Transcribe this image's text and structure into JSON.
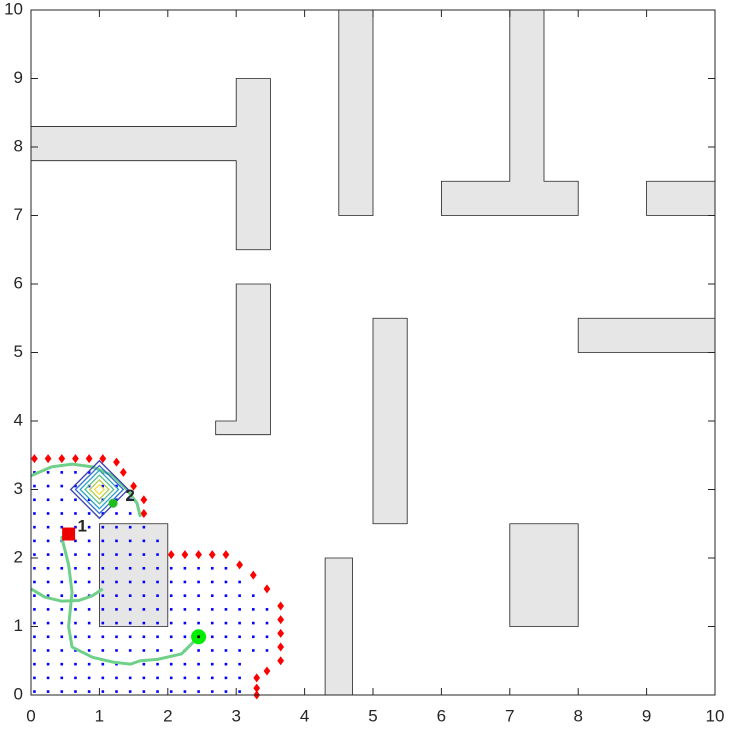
{
  "chart_data": {
    "type": "map",
    "xlim": [
      0,
      10
    ],
    "ylim": [
      0,
      10
    ],
    "xticks": [
      0,
      1,
      2,
      3,
      4,
      5,
      6,
      7,
      8,
      9,
      10
    ],
    "yticks": [
      0,
      1,
      2,
      3,
      4,
      5,
      6,
      7,
      8,
      9,
      10
    ],
    "obstacle_color": "#e6e6e6",
    "obstacles": [
      {
        "x": [
          0,
          3,
          3,
          3.5,
          3.5,
          3,
          3,
          0
        ],
        "y": [
          7.8,
          7.8,
          6.5,
          6.5,
          9,
          9,
          8.3,
          8.3
        ]
      },
      {
        "x": [
          4.5,
          5,
          5,
          4.5
        ],
        "y": [
          7,
          7,
          10,
          10
        ]
      },
      {
        "x": [
          6,
          8,
          8,
          7.5,
          7.5,
          7,
          7,
          6
        ],
        "y": [
          7,
          7,
          7.5,
          7.5,
          10,
          10,
          7.5,
          7.5
        ]
      },
      {
        "x": [
          9,
          10,
          10,
          9
        ],
        "y": [
          7,
          7,
          7.5,
          7.5
        ]
      },
      {
        "x": [
          2.7,
          3.5,
          3.5,
          3,
          3,
          2.7
        ],
        "y": [
          3.8,
          3.8,
          6,
          6,
          4,
          4
        ]
      },
      {
        "x": [
          5,
          5.5,
          5.5,
          5
        ],
        "y": [
          2.5,
          2.5,
          5.5,
          5.5
        ]
      },
      {
        "x": [
          8,
          10,
          10,
          8
        ],
        "y": [
          5,
          5,
          5.5,
          5.5
        ]
      },
      {
        "x": [
          7,
          8,
          8,
          7
        ],
        "y": [
          1,
          1,
          2.5,
          2.5
        ]
      },
      {
        "x": [
          1,
          2,
          2,
          1
        ],
        "y": [
          1,
          1,
          2.5,
          2.5
        ]
      },
      {
        "x": [
          4.3,
          4.7,
          4.7,
          4.3
        ],
        "y": [
          0,
          0,
          2,
          2
        ]
      }
    ],
    "explored_color": "#0000ff",
    "explored": [
      {
        "y": 0.05,
        "x": [
          0.05,
          0.25,
          0.45,
          0.65,
          0.85,
          1.05,
          1.25,
          1.45,
          1.65,
          1.85,
          2.05,
          2.25,
          2.45,
          2.65,
          2.85,
          3.05
        ]
      },
      {
        "y": 0.25,
        "x": [
          0.05,
          0.25,
          0.45,
          0.65,
          0.85,
          1.05,
          1.25,
          1.45,
          1.65,
          1.85,
          2.05,
          2.25,
          2.45,
          2.65,
          2.85,
          3.05
        ]
      },
      {
        "y": 0.45,
        "x": [
          0.05,
          0.25,
          0.45,
          0.65,
          0.85,
          1.05,
          1.25,
          1.45,
          1.65,
          1.85,
          2.05,
          2.25,
          2.45,
          2.65,
          2.85,
          3.05
        ]
      },
      {
        "y": 0.65,
        "x": [
          0.05,
          0.25,
          0.45,
          0.65,
          0.85,
          1.05,
          1.25,
          1.45,
          1.65,
          1.85,
          2.05,
          2.25,
          2.45,
          2.65,
          2.85,
          3.05,
          3.25,
          3.45
        ]
      },
      {
        "y": 0.85,
        "x": [
          0.05,
          0.25,
          0.45,
          0.65,
          0.85,
          1.05,
          1.25,
          1.45,
          1.65,
          1.85,
          2.05,
          2.25,
          2.45,
          2.65,
          2.85,
          3.05,
          3.25,
          3.45
        ]
      },
      {
        "y": 1.05,
        "x": [
          0.05,
          0.25,
          0.45,
          0.65,
          0.85,
          1.05,
          1.25,
          1.45,
          1.65,
          1.85,
          2.05,
          2.25,
          2.45,
          2.65,
          2.85,
          3.05,
          3.25,
          3.45
        ]
      },
      {
        "y": 1.25,
        "x": [
          0.05,
          0.25,
          0.45,
          0.65,
          0.85,
          1.05,
          1.25,
          1.45,
          1.65,
          1.85,
          2.05,
          2.25,
          2.45,
          2.65,
          2.85,
          3.05,
          3.25,
          3.45
        ]
      },
      {
        "y": 1.45,
        "x": [
          0.05,
          0.25,
          0.45,
          0.65,
          0.85,
          1.05,
          1.25,
          1.45,
          1.65,
          1.85,
          2.05,
          2.25,
          2.45,
          2.65,
          2.85,
          3.05,
          3.25
        ]
      },
      {
        "y": 1.65,
        "x": [
          0.05,
          0.25,
          0.45,
          0.65,
          0.85,
          1.05,
          1.25,
          1.45,
          1.65,
          1.85,
          2.05,
          2.25,
          2.45,
          2.65,
          2.85,
          3.05
        ]
      },
      {
        "y": 1.85,
        "x": [
          0.05,
          0.25,
          0.45,
          0.65,
          0.85,
          1.05,
          1.25,
          1.45,
          1.65,
          1.85,
          2.05,
          2.25,
          2.45,
          2.65,
          2.85
        ]
      },
      {
        "y": 2.05,
        "x": [
          0.05,
          0.25,
          0.45,
          0.65,
          0.85,
          1.05,
          1.25,
          1.45,
          1.65,
          1.85
        ]
      },
      {
        "y": 2.25,
        "x": [
          0.05,
          0.25,
          0.45,
          0.65,
          0.85,
          1.05,
          1.25,
          1.45,
          1.65,
          1.85
        ]
      },
      {
        "y": 2.45,
        "x": [
          0.05,
          0.25,
          0.45,
          0.65,
          0.85,
          1.05,
          1.25,
          1.45,
          1.65
        ]
      },
      {
        "y": 2.65,
        "x": [
          0.05,
          0.25,
          0.45,
          0.65,
          0.85,
          1.05,
          1.25,
          1.45
        ]
      },
      {
        "y": 2.85,
        "x": [
          0.05,
          0.25,
          0.45,
          0.65,
          0.85,
          1.05,
          1.25,
          1.45
        ]
      },
      {
        "y": 3.05,
        "x": [
          0.05,
          0.25,
          0.45,
          0.65,
          0.85,
          1.05,
          1.25
        ]
      },
      {
        "y": 3.25,
        "x": [
          0.05,
          0.25,
          0.45,
          0.65,
          0.85,
          1.05
        ]
      }
    ],
    "frontier_color": "#ff0000",
    "frontier": {
      "x": [
        0.05,
        0.25,
        0.45,
        0.65,
        0.85,
        1.05,
        1.25,
        1.35,
        1.5,
        1.65,
        1.65,
        2.05,
        2.25,
        2.45,
        2.65,
        2.85,
        3.05,
        3.25,
        3.45,
        3.65,
        3.65,
        3.65,
        3.65,
        3.65,
        3.45,
        3.3,
        3.3,
        3.3
      ],
      "y": [
        3.45,
        3.45,
        3.45,
        3.45,
        3.45,
        3.45,
        3.4,
        3.25,
        3.05,
        2.85,
        2.65,
        2.05,
        2.05,
        2.05,
        2.05,
        2.05,
        1.9,
        1.75,
        1.55,
        1.3,
        1.1,
        0.9,
        0.7,
        0.5,
        0.35,
        0.25,
        0.1,
        0
      ]
    },
    "path_color": "#6fd08a",
    "paths": [
      {
        "x": [
          2.45,
          2.2,
          1.85,
          1.6,
          1.45,
          1.2,
          0.9,
          0.6,
          0.55,
          0.6,
          0.55,
          0.5,
          0.45,
          0.55
        ],
        "y": [
          0.85,
          0.6,
          0.52,
          0.5,
          0.45,
          0.48,
          0.55,
          0.7,
          1.0,
          1.5,
          1.9,
          2.1,
          2.3,
          2.35
        ]
      },
      {
        "x": [
          0.0,
          0.3,
          0.6,
          0.9,
          1.2,
          1.4,
          1.55,
          1.6
        ],
        "y": [
          3.2,
          3.33,
          3.37,
          3.33,
          3.2,
          3.0,
          2.8,
          2.6
        ]
      },
      {
        "x": [
          0.0,
          0.2,
          0.45,
          0.7,
          0.9,
          1.05
        ],
        "y": [
          1.55,
          1.43,
          1.37,
          1.38,
          1.45,
          1.55
        ]
      }
    ],
    "contour_center": {
      "x": 1.0,
      "y": 3.0
    },
    "contour_radii": [
      0.42,
      0.35,
      0.28,
      0.21,
      0.14,
      0.07
    ],
    "contour_colors": [
      "#3a3fb0",
      "#2e6fd0",
      "#2aa4c8",
      "#5cc18c",
      "#b5cc55",
      "#f0e040"
    ],
    "start": {
      "x": 2.45,
      "y": 0.85,
      "color": "#00ee00"
    },
    "robot": {
      "x": 0.55,
      "y": 2.35,
      "color": "#ee0000"
    },
    "goal": {
      "x": 1.2,
      "y": 2.8,
      "color": "#22bb22"
    },
    "labels": [
      {
        "text": "1",
        "x": 0.68,
        "y": 2.45
      },
      {
        "text": "2",
        "x": 1.38,
        "y": 2.9
      }
    ]
  }
}
